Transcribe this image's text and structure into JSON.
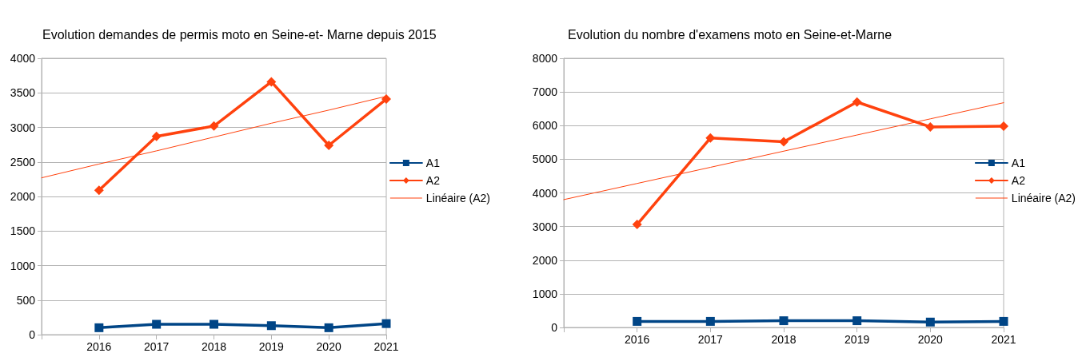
{
  "chart_data": [
    {
      "type": "line",
      "title": "Evolution demandes de permis moto en Seine-et- Marne depuis 2015",
      "x": [
        2015,
        2016,
        2017,
        2018,
        2019,
        2020,
        2021
      ],
      "series": [
        {
          "name": "A1",
          "color": "#004586",
          "marker": "square",
          "values": [
            null,
            100,
            150,
            150,
            130,
            100,
            160
          ]
        },
        {
          "name": "A2",
          "color": "#ff420e",
          "marker": "diamond",
          "values": [
            null,
            2090,
            2870,
            3020,
            3660,
            2740,
            3410
          ]
        },
        {
          "name": "Linéaire (A2)",
          "color": "#ff420e",
          "marker": "none",
          "values": [
            2270,
            2470,
            2660,
            2860,
            3060,
            3250,
            3450
          ]
        }
      ],
      "xlim": [
        2015,
        2021
      ],
      "xticks": [
        {
          "value": 2015,
          "label": null
        },
        2016,
        2017,
        2018,
        2019,
        2020,
        2021
      ],
      "ylim": [
        0,
        4000
      ],
      "yticks": [
        0,
        500,
        1000,
        1500,
        2000,
        2500,
        3000,
        3500,
        4000
      ],
      "grid": "y",
      "legend": "right"
    },
    {
      "type": "line",
      "title": "Evolution du nombre d'examens moto en Seine-et-Marne",
      "x": [
        2015,
        2016,
        2017,
        2018,
        2019,
        2020,
        2021
      ],
      "series": [
        {
          "name": "A1",
          "color": "#004586",
          "marker": "square",
          "values": [
            null,
            180,
            180,
            200,
            200,
            160,
            180
          ]
        },
        {
          "name": "A2",
          "color": "#ff420e",
          "marker": "diamond",
          "values": [
            null,
            3060,
            5630,
            5520,
            6700,
            5960,
            5980
          ]
        },
        {
          "name": "Linéaire (A2)",
          "color": "#ff420e",
          "marker": "none",
          "values": [
            3800,
            4280,
            4760,
            5240,
            5720,
            6200,
            6680
          ]
        }
      ],
      "xlim": [
        2015,
        2021
      ],
      "xticks": [
        {
          "value": 2015,
          "label": null
        },
        2016,
        2017,
        2018,
        2019,
        2020,
        2021
      ],
      "ylim": [
        0,
        8000
      ],
      "yticks": [
        0,
        1000,
        2000,
        3000,
        4000,
        5000,
        6000,
        7000,
        8000
      ],
      "grid": "y",
      "legend": "right"
    }
  ]
}
